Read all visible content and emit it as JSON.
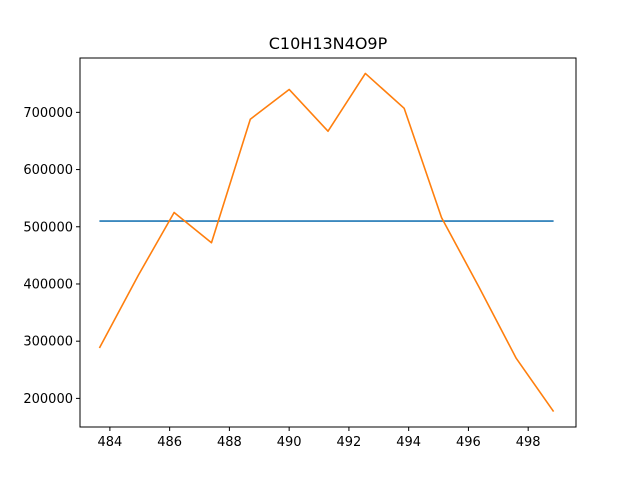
{
  "chart_data": {
    "type": "line",
    "title": "C10H13N4O9P",
    "xlabel": "",
    "ylabel": "",
    "xlim": [
      483.0,
      499.6
    ],
    "ylim": [
      150000,
      795000
    ],
    "x_ticks": [
      484,
      486,
      488,
      490,
      492,
      494,
      496,
      498
    ],
    "y_ticks": [
      200000,
      300000,
      400000,
      500000,
      600000,
      700000
    ],
    "grid": false,
    "series": [
      {
        "color": "#1f77b4",
        "x": [
          483.65,
          498.85
        ],
        "y": [
          510000,
          510000
        ]
      },
      {
        "color": "#ff7f0e",
        "x": [
          483.65,
          484.95,
          486.15,
          487.4,
          488.7,
          490.0,
          491.3,
          492.55,
          493.85,
          495.1,
          496.35,
          497.6,
          498.85
        ],
        "y": [
          288000,
          415000,
          525000,
          472000,
          688000,
          740000,
          667000,
          768000,
          707000,
          516000,
          395000,
          270000,
          177000
        ]
      }
    ]
  }
}
